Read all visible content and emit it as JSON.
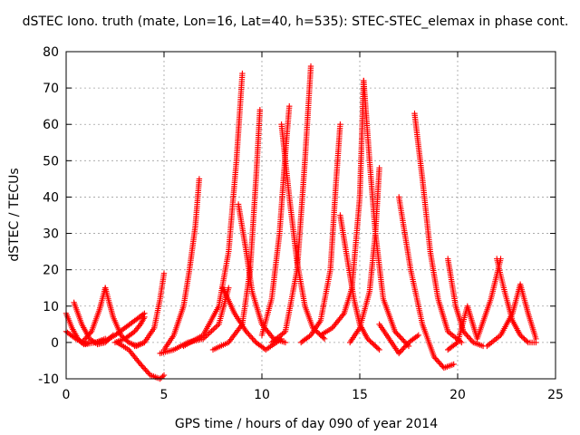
{
  "chart_data": {
    "type": "scatter",
    "title": "dSTEC Iono. truth (mate, Lon=16, Lat=40, h=535): STEC-STEC_elemax in phase cont.",
    "xlabel": "GPS time / hours of day 090 of year 2014",
    "ylabel": "dSTEC  / TECUs",
    "xlim": [
      0,
      25
    ],
    "ylim": [
      -10,
      80
    ],
    "xticks": [
      0,
      5,
      10,
      15,
      20,
      25
    ],
    "yticks": [
      -10,
      0,
      10,
      20,
      30,
      40,
      50,
      60,
      70,
      80
    ],
    "grid": true,
    "marker": "+",
    "color": "#ff0000",
    "series": [
      {
        "x": [
          0.0,
          0.3,
          0.6,
          0.9,
          1.2
        ],
        "y": [
          8,
          4,
          1,
          -0.5,
          0
        ]
      },
      {
        "x": [
          0.0,
          0.5,
          1.0,
          1.5,
          2.0
        ],
        "y": [
          3,
          1,
          -0.5,
          0,
          1
        ]
      },
      {
        "x": [
          0.4,
          0.8,
          1.2,
          1.6,
          2.0,
          2.4
        ],
        "y": [
          11,
          5,
          1,
          -0.5,
          0,
          2
        ]
      },
      {
        "x": [
          0.8,
          1.3,
          1.7,
          2.0
        ],
        "y": [
          0,
          3,
          9,
          15
        ]
      },
      {
        "x": [
          2.0,
          2.4,
          2.8,
          3.2,
          3.6,
          4.0
        ],
        "y": [
          15,
          7,
          2,
          0,
          -1,
          0
        ]
      },
      {
        "x": [
          1.5,
          2.0,
          2.5,
          3.0,
          3.5,
          4.0
        ],
        "y": [
          0,
          0.5,
          2,
          4,
          6,
          8
        ]
      },
      {
        "x": [
          2.5,
          3.0,
          3.5,
          3.8,
          4.0
        ],
        "y": [
          0,
          1,
          3,
          5,
          7
        ]
      },
      {
        "x": [
          3.5,
          4.0,
          4.5,
          4.8,
          5.0
        ],
        "y": [
          -1,
          0,
          4,
          12,
          19
        ]
      },
      {
        "x": [
          2.6,
          3.2,
          3.8,
          4.3,
          4.8,
          5.0
        ],
        "y": [
          0,
          -2,
          -6,
          -9,
          -10,
          -9
        ]
      },
      {
        "x": [
          5.0,
          5.5,
          6.0,
          6.3,
          6.6,
          6.8
        ],
        "y": [
          -2,
          2,
          10,
          20,
          32,
          45
        ]
      },
      {
        "x": [
          4.8,
          5.5,
          6.2,
          7.0,
          7.8,
          8.3
        ],
        "y": [
          -3,
          -2,
          0,
          1,
          5,
          15
        ]
      },
      {
        "x": [
          6.0,
          7.0,
          7.8,
          8.3,
          8.7,
          9.0
        ],
        "y": [
          -1,
          2,
          10,
          25,
          50,
          74
        ]
      },
      {
        "x": [
          7.5,
          8.3,
          9.0,
          9.4,
          9.7,
          9.9
        ],
        "y": [
          -2,
          0,
          5,
          20,
          45,
          64
        ]
      },
      {
        "x": [
          8.0,
          8.6,
          9.2,
          9.7,
          10.2,
          11.0
        ],
        "y": [
          15,
          8,
          3,
          0,
          -2,
          1
        ]
      },
      {
        "x": [
          8.8,
          9.2,
          9.5,
          10.0,
          10.6,
          11.2
        ],
        "y": [
          38,
          25,
          14,
          5,
          1,
          0
        ]
      },
      {
        "x": [
          10.0,
          10.5,
          10.9,
          11.2,
          11.4
        ],
        "y": [
          2,
          12,
          30,
          52,
          65
        ]
      },
      {
        "x": [
          11.0,
          11.4,
          11.8,
          12.2,
          12.6,
          13.2
        ],
        "y": [
          60,
          40,
          22,
          10,
          4,
          1
        ]
      },
      {
        "x": [
          10.5,
          11.2,
          11.8,
          12.2,
          12.5
        ],
        "y": [
          0,
          3,
          20,
          50,
          76
        ]
      },
      {
        "x": [
          12.0,
          12.5,
          13.0,
          13.5,
          13.8,
          14.0
        ],
        "y": [
          0,
          2,
          6,
          20,
          45,
          60
        ]
      },
      {
        "x": [
          14.0,
          14.3,
          14.7,
          15.0,
          15.4,
          16.0
        ],
        "y": [
          35,
          25,
          12,
          5,
          1,
          -2
        ]
      },
      {
        "x": [
          13.0,
          13.6,
          14.2,
          14.6,
          15.0,
          15.2
        ],
        "y": [
          2,
          4,
          8,
          15,
          40,
          72
        ]
      },
      {
        "x": [
          15.2,
          15.5,
          15.8,
          16.2,
          16.8,
          17.5
        ],
        "y": [
          72,
          50,
          30,
          12,
          3,
          -1
        ]
      },
      {
        "x": [
          14.5,
          15.0,
          15.5,
          15.8,
          16.0
        ],
        "y": [
          0,
          4,
          14,
          30,
          48
        ]
      },
      {
        "x": [
          16.0,
          16.5,
          17.0,
          17.5,
          18.0
        ],
        "y": [
          5,
          1,
          -3,
          0,
          2
        ]
      },
      {
        "x": [
          17.0,
          17.6,
          18.2,
          18.8,
          19.3,
          19.8
        ],
        "y": [
          40,
          20,
          5,
          -4,
          -7,
          -6
        ]
      },
      {
        "x": [
          17.8,
          18.2,
          18.6,
          19.0,
          19.5,
          20.2
        ],
        "y": [
          63,
          45,
          25,
          12,
          3,
          0
        ]
      },
      {
        "x": [
          19.5,
          19.9,
          20.3,
          20.8,
          21.3
        ],
        "y": [
          23,
          10,
          3,
          0,
          -1
        ]
      },
      {
        "x": [
          19.5,
          20.0,
          20.5,
          21.0,
          21.7,
          22.2
        ],
        "y": [
          -2,
          0,
          10,
          1,
          12,
          23
        ]
      },
      {
        "x": [
          22.0,
          22.4,
          22.8,
          23.2,
          23.6,
          24.0
        ],
        "y": [
          23,
          14,
          6,
          2,
          0,
          0
        ]
      },
      {
        "x": [
          21.5,
          22.2,
          22.8,
          23.2,
          23.6,
          24.0
        ],
        "y": [
          -1,
          2,
          8,
          16,
          8,
          1
        ]
      }
    ]
  }
}
